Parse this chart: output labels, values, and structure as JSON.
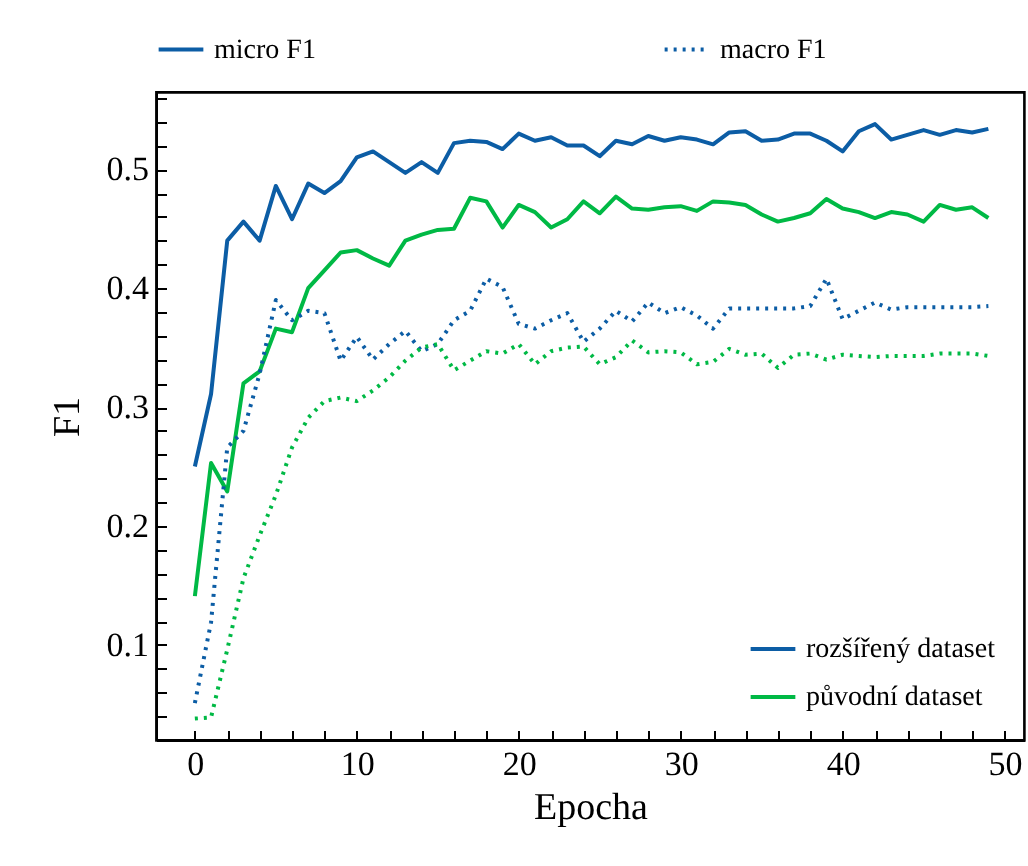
{
  "chart_data": {
    "type": "line",
    "xlabel": "Epocha",
    "ylabel": "F1",
    "x": [
      0,
      1,
      2,
      3,
      4,
      5,
      6,
      7,
      8,
      9,
      10,
      11,
      12,
      13,
      14,
      15,
      16,
      17,
      18,
      19,
      20,
      21,
      22,
      23,
      24,
      25,
      26,
      27,
      28,
      29,
      30,
      31,
      32,
      33,
      34,
      35,
      36,
      37,
      38,
      39,
      40,
      41,
      42,
      43,
      44,
      45,
      46,
      47,
      48,
      49
    ],
    "series": [
      {
        "name": "rozšířený dataset",
        "color": "#0c5da5",
        "line_style": "solid",
        "values": [
          0.25,
          0.311,
          0.44,
          0.456,
          0.44,
          0.486,
          0.458,
          0.488,
          0.48,
          0.49,
          0.51,
          0.515,
          0.506,
          0.497,
          0.506,
          0.497,
          0.522,
          0.524,
          0.523,
          0.517,
          0.53,
          0.524,
          0.527,
          0.52,
          0.52,
          0.511,
          0.524,
          0.521,
          0.528,
          0.524,
          0.527,
          0.525,
          0.521,
          0.531,
          0.532,
          0.524,
          0.525,
          0.53,
          0.53,
          0.524,
          0.515,
          0.532,
          0.538,
          0.525,
          0.529,
          0.533,
          0.529,
          0.533,
          0.531,
          0.534
        ]
      },
      {
        "name": "původní dataset",
        "color": "#00b945",
        "line_style": "solid",
        "values": [
          0.141,
          0.253,
          0.229,
          0.32,
          0.33,
          0.366,
          0.363,
          0.4,
          0.415,
          0.43,
          0.432,
          0.425,
          0.419,
          0.44,
          0.445,
          0.449,
          0.45,
          0.476,
          0.473,
          0.451,
          0.47,
          0.464,
          0.451,
          0.458,
          0.473,
          0.463,
          0.477,
          0.467,
          0.466,
          0.468,
          0.469,
          0.465,
          0.473,
          0.472,
          0.47,
          0.462,
          0.456,
          0.459,
          0.463,
          0.475,
          0.467,
          0.464,
          0.459,
          0.464,
          0.462,
          0.456,
          0.47,
          0.466,
          0.468,
          0.459
        ]
      },
      {
        "color": "#0c5da5",
        "line_style": "dotted",
        "values": [
          0.051,
          0.119,
          0.266,
          0.28,
          0.328,
          0.39,
          0.373,
          0.381,
          0.379,
          0.339,
          0.359,
          0.34,
          0.353,
          0.364,
          0.347,
          0.353,
          0.373,
          0.381,
          0.408,
          0.401,
          0.37,
          0.366,
          0.373,
          0.379,
          0.355,
          0.366,
          0.381,
          0.372,
          0.388,
          0.379,
          0.384,
          0.377,
          0.366,
          0.383,
          0.383,
          0.383,
          0.383,
          0.383,
          0.385,
          0.408,
          0.374,
          0.381,
          0.388,
          0.382,
          0.384,
          0.384,
          0.384,
          0.384,
          0.384,
          0.385
        ]
      },
      {
        "color": "#00b945",
        "line_style": "dotted",
        "values": [
          0.038,
          0.039,
          0.096,
          0.156,
          0.192,
          0.226,
          0.266,
          0.291,
          0.305,
          0.308,
          0.305,
          0.314,
          0.325,
          0.339,
          0.35,
          0.353,
          0.331,
          0.339,
          0.347,
          0.345,
          0.353,
          0.336,
          0.347,
          0.35,
          0.351,
          0.336,
          0.342,
          0.356,
          0.346,
          0.347,
          0.346,
          0.336,
          0.338,
          0.349,
          0.344,
          0.345,
          0.333,
          0.344,
          0.345,
          0.34,
          0.344,
          0.343,
          0.342,
          0.343,
          0.343,
          0.343,
          0.345,
          0.345,
          0.345,
          0.343
        ]
      }
    ],
    "annotations": [
      "micro F1",
      "macro F1"
    ],
    "xlim": [
      -2.4,
      51.2
    ],
    "xticks": [
      0,
      {
        "value": 2,
        "label": null
      },
      {
        "value": 4,
        "label": null
      },
      {
        "value": 6,
        "label": null
      },
      {
        "value": 8,
        "label": null
      },
      10,
      {
        "value": 12,
        "label": null
      },
      {
        "value": 14,
        "label": null
      },
      {
        "value": 16,
        "label": null
      },
      {
        "value": 18,
        "label": null
      },
      20,
      {
        "value": 22,
        "label": null
      },
      {
        "value": 24,
        "label": null
      },
      {
        "value": 26,
        "label": null
      },
      {
        "value": 28,
        "label": null
      },
      30,
      {
        "value": 32,
        "label": null
      },
      {
        "value": 34,
        "label": null
      },
      {
        "value": 36,
        "label": null
      },
      {
        "value": 38,
        "label": null
      },
      40,
      {
        "value": 42,
        "label": null
      },
      {
        "value": 44,
        "label": null
      },
      {
        "value": 46,
        "label": null
      },
      {
        "value": 48,
        "label": null
      },
      50
    ],
    "ylim": [
      0.02,
      0.565
    ],
    "yticks": [
      {
        "value": 0.04,
        "label": null
      },
      {
        "value": 0.06,
        "label": null
      },
      {
        "value": 0.08,
        "label": null
      },
      0.1,
      {
        "value": 0.12,
        "label": null
      },
      {
        "value": 0.14,
        "label": null
      },
      {
        "value": 0.16,
        "label": null
      },
      {
        "value": 0.18,
        "label": null
      },
      0.2,
      {
        "value": 0.22,
        "label": null
      },
      {
        "value": 0.24,
        "label": null
      },
      {
        "value": 0.26,
        "label": null
      },
      {
        "value": 0.28,
        "label": null
      },
      0.3,
      {
        "value": 0.32,
        "label": null
      },
      {
        "value": 0.34,
        "label": null
      },
      {
        "value": 0.36,
        "label": null
      },
      {
        "value": 0.38,
        "label": null
      },
      0.4,
      {
        "value": 0.42,
        "label": null
      },
      {
        "value": 0.44,
        "label": null
      },
      {
        "value": 0.46,
        "label": null
      },
      {
        "value": 0.48,
        "label": null
      },
      0.5,
      {
        "value": 0.52,
        "label": null
      },
      {
        "value": 0.54,
        "label": null
      },
      {
        "value": 0.56,
        "label": null
      }
    ],
    "legend": "bottom right"
  }
}
